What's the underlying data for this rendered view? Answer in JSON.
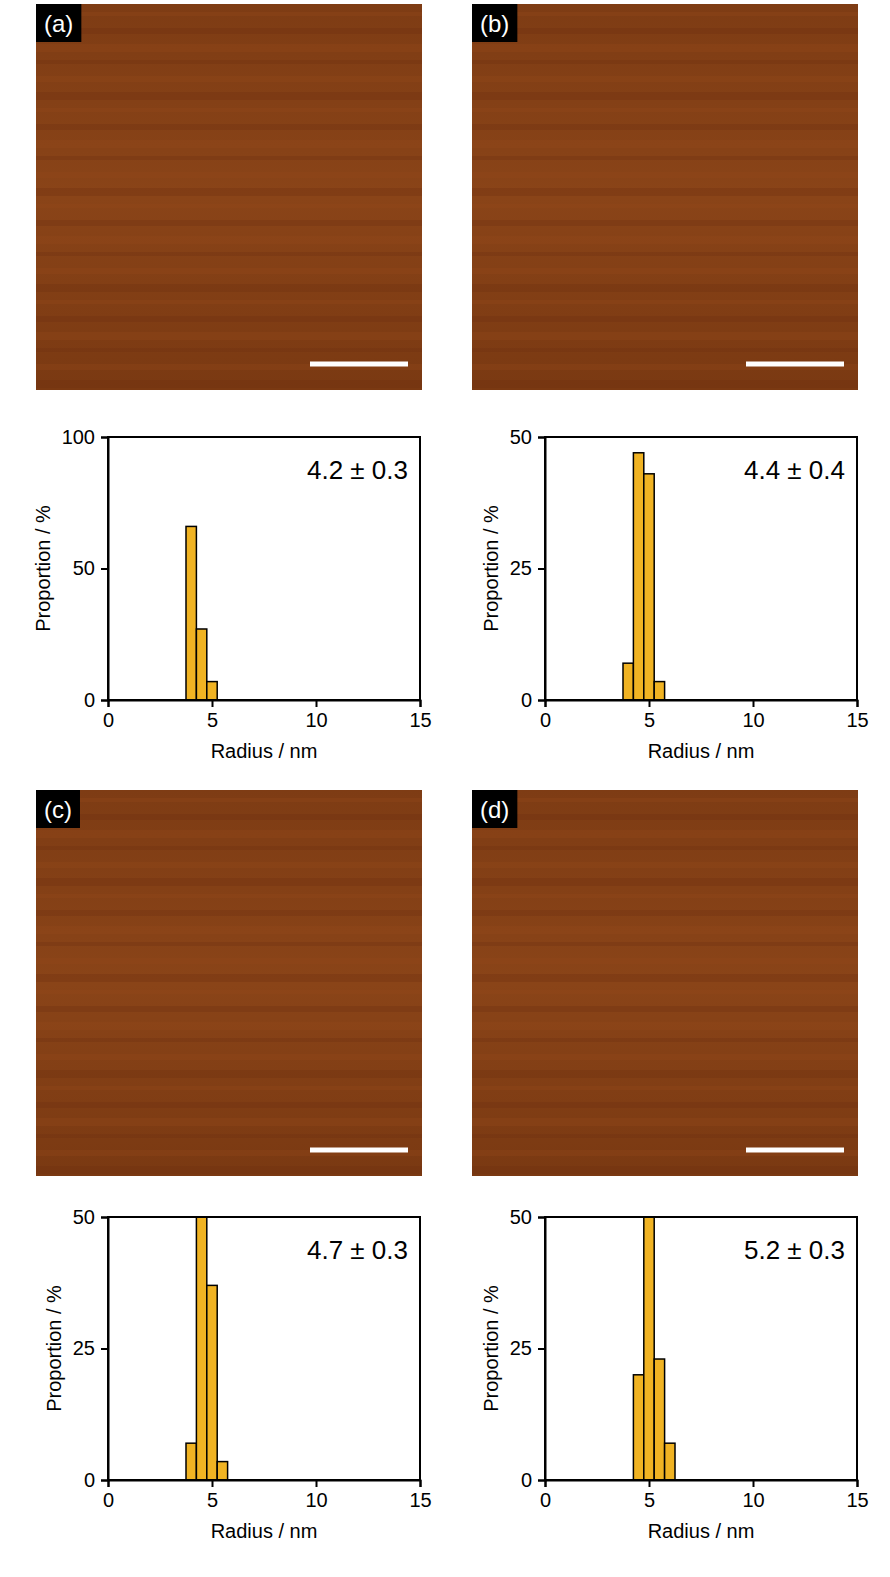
{
  "chart_data": [
    {
      "type": "histogram",
      "title": "(a)",
      "annotation": "4.2 ± 0.3",
      "x_label": "Radius / nm",
      "y_label": "Proportion / %",
      "bins": [
        3.75,
        4.25,
        4.75,
        5.25
      ],
      "values": [
        66,
        27,
        7
      ],
      "color": "#f0b323",
      "xlim": [
        0,
        15
      ],
      "xticks": [
        0,
        5,
        10,
        15
      ],
      "ylim": [
        0,
        100
      ],
      "yticks": [
        0,
        50,
        100
      ]
    },
    {
      "type": "histogram",
      "title": "(b)",
      "annotation": "4.4 ± 0.4",
      "x_label": "Radius / nm",
      "y_label": "Proportion / %",
      "bins": [
        3.75,
        4.25,
        4.75,
        5.25,
        5.75
      ],
      "values": [
        7,
        47,
        43,
        3.5
      ],
      "color": "#f0b323",
      "xlim": [
        0,
        15
      ],
      "xticks": [
        0,
        5,
        10,
        15
      ],
      "ylim": [
        0,
        50
      ],
      "yticks": [
        0,
        25,
        50
      ]
    },
    {
      "type": "histogram",
      "title": "(c)",
      "annotation": "4.7 ± 0.3",
      "x_label": "Radius / nm",
      "y_label": "Proportion / %",
      "bins": [
        3.75,
        4.25,
        4.75,
        5.25,
        5.75
      ],
      "values": [
        7,
        50,
        37,
        3.5
      ],
      "color": "#f0b323",
      "xlim": [
        0,
        15
      ],
      "xticks": [
        0,
        5,
        10,
        15
      ],
      "ylim": [
        0,
        50
      ],
      "yticks": [
        0,
        25,
        50
      ]
    },
    {
      "type": "histogram",
      "title": "(d)",
      "annotation": "5.2 ± 0.3",
      "x_label": "Radius / nm",
      "y_label": "Proportion / %",
      "bins": [
        4.25,
        4.75,
        5.25,
        5.75,
        6.25
      ],
      "values": [
        20,
        50,
        23,
        7
      ],
      "color": "#f0b323",
      "xlim": [
        0,
        15
      ],
      "xticks": [
        0,
        5,
        10,
        15
      ],
      "ylim": [
        0,
        50
      ],
      "yticks": [
        0,
        25,
        50
      ]
    }
  ]
}
